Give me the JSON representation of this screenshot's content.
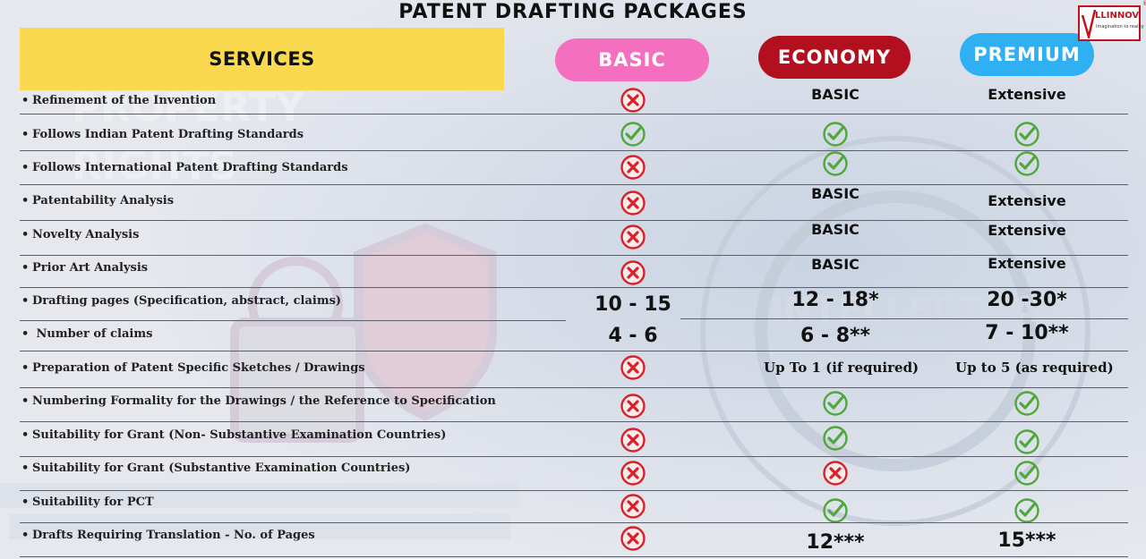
{
  "title": "PATENT DRAFTING PACKAGES",
  "logo": {
    "brand": "LLINNOV",
    "tagline": "Imagination to reality",
    "registered": "®"
  },
  "header": {
    "services": "SERVICES",
    "basic": "BASIC",
    "economy": "ECONOMY",
    "premium": "PREMIUM"
  },
  "colors": {
    "check": "#4ea83a",
    "cross": "#d6212a",
    "basic_pill": "#f56fbf",
    "economy_pill": "#b2101e",
    "premium_pill": "#2fb0f2",
    "services_bg": "#fad94e"
  },
  "rows": [
    {
      "service": "Refinement of the Invention",
      "basic": {
        "kind": "cross"
      },
      "economy": {
        "kind": "text",
        "text": "BASIC"
      },
      "premium": {
        "kind": "text",
        "text": "Extensive"
      }
    },
    {
      "service": "Follows Indian Patent Drafting Standards",
      "basic": {
        "kind": "check"
      },
      "economy": {
        "kind": "check"
      },
      "premium": {
        "kind": "check"
      }
    },
    {
      "service": "Follows International Patent Drafting Standards",
      "basic": {
        "kind": "cross"
      },
      "economy": {
        "kind": "check"
      },
      "premium": {
        "kind": "check"
      }
    },
    {
      "service": "Patentability Analysis",
      "basic": {
        "kind": "cross"
      },
      "economy": {
        "kind": "text",
        "text": "BASIC"
      },
      "premium": {
        "kind": "text",
        "text": "Extensive"
      }
    },
    {
      "service": "Novelty Analysis",
      "basic": {
        "kind": "cross"
      },
      "economy": {
        "kind": "text",
        "text": "BASIC"
      },
      "premium": {
        "kind": "text",
        "text": "Extensive"
      }
    },
    {
      "service": "Prior Art Analysis",
      "basic": {
        "kind": "cross"
      },
      "economy": {
        "kind": "text",
        "text": "BASIC"
      },
      "premium": {
        "kind": "text",
        "text": "Extensive"
      }
    },
    {
      "service": "Drafting pages (Specification, abstract, claims)",
      "basic": {
        "kind": "big",
        "text": "10 - 15"
      },
      "economy": {
        "kind": "big",
        "text": "12 - 18*"
      },
      "premium": {
        "kind": "big",
        "text": "20 -30*"
      }
    },
    {
      "service": " Number of claims",
      "basic": {
        "kind": "big",
        "text": "4 - 6"
      },
      "economy": {
        "kind": "big",
        "text": "6 - 8**"
      },
      "premium": {
        "kind": "big",
        "text": "7 - 10**"
      }
    },
    {
      "service": "Preparation of Patent Specific Sketches / Drawings",
      "basic": {
        "kind": "cross"
      },
      "economy": {
        "kind": "serif",
        "text": "Up To 1 (if required)"
      },
      "premium": {
        "kind": "serif",
        "text": "Up to 5 (as required)"
      }
    },
    {
      "service": "Numbering Formality for the Drawings / the Reference to Specification",
      "basic": {
        "kind": "cross"
      },
      "economy": {
        "kind": "check"
      },
      "premium": {
        "kind": "check"
      }
    },
    {
      "service": "Suitability for Grant (Non- Substantive Examination Countries)",
      "basic": {
        "kind": "cross"
      },
      "economy": {
        "kind": "check"
      },
      "premium": {
        "kind": "check"
      }
    },
    {
      "service": "Suitability for Grant (Substantive Examination Countries)",
      "basic": {
        "kind": "cross"
      },
      "economy": {
        "kind": "cross"
      },
      "premium": {
        "kind": "check"
      }
    },
    {
      "service": "Suitability for PCT",
      "basic": {
        "kind": "cross"
      },
      "economy": {
        "kind": "check"
      },
      "premium": {
        "kind": "check"
      }
    },
    {
      "service": "Drafts Requiring Translation - No. of Pages",
      "basic": {
        "kind": "cross"
      },
      "economy": {
        "kind": "big",
        "text": "12***"
      },
      "premium": {
        "kind": "big",
        "text": "15***"
      }
    }
  ]
}
